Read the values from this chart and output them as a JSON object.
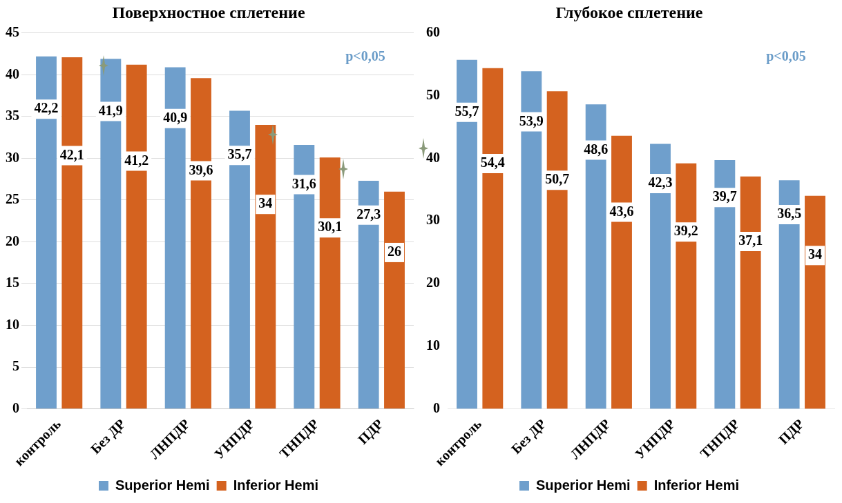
{
  "chart_data": [
    {
      "type": "bar",
      "title": "Поверхностное сплетение",
      "categories": [
        "контроль",
        "Без ДР",
        "ЛНПДР",
        "УНПДР",
        "ТНПДР",
        "ПДР"
      ],
      "series": [
        {
          "name": "Superior Hemi",
          "color": "#6f9fcc",
          "values": [
            42.2,
            41.9,
            40.9,
            35.7,
            31.6,
            27.3
          ],
          "value_labels": [
            "42,2",
            "41,9",
            "40,9",
            "35,7",
            "31,6",
            "27,3"
          ]
        },
        {
          "name": "Inferior Hemi",
          "color": "#d4621f",
          "values": [
            42.1,
            41.2,
            39.6,
            34,
            30.1,
            26
          ],
          "value_labels": [
            "42,1",
            "41,2",
            "39,6",
            "34",
            "30,1",
            "26"
          ]
        }
      ],
      "ylim": [
        0,
        45
      ],
      "yticks": [
        0,
        5,
        10,
        15,
        20,
        25,
        30,
        35,
        40,
        45
      ],
      "grid": "y",
      "legend": "bottom",
      "annotations": [
        "p<0,05"
      ]
    },
    {
      "type": "bar",
      "title": "Глубокое сплетение",
      "categories": [
        "контроль",
        "Без ДР",
        "ЛНПДР",
        "УНПДР",
        "ТНПДР",
        "ПДР"
      ],
      "series": [
        {
          "name": "Superior Hemi",
          "color": "#6f9fcc",
          "values": [
            55.7,
            53.9,
            48.6,
            42.3,
            39.7,
            36.5
          ],
          "value_labels": [
            "55,7",
            "53,9",
            "48,6",
            "42,3",
            "39,7",
            "36,5"
          ]
        },
        {
          "name": "Inferior Hemi",
          "color": "#d4621f",
          "values": [
            54.4,
            50.7,
            43.6,
            39.2,
            37.1,
            34
          ],
          "value_labels": [
            "54,4",
            "50,7",
            "43,6",
            "39,2",
            "37,1",
            "34"
          ]
        }
      ],
      "ylim": [
        0,
        60
      ],
      "yticks": [
        0,
        10,
        20,
        30,
        40,
        50,
        60
      ],
      "legend": "bottom",
      "annotations": [
        "p<0,05"
      ]
    }
  ]
}
